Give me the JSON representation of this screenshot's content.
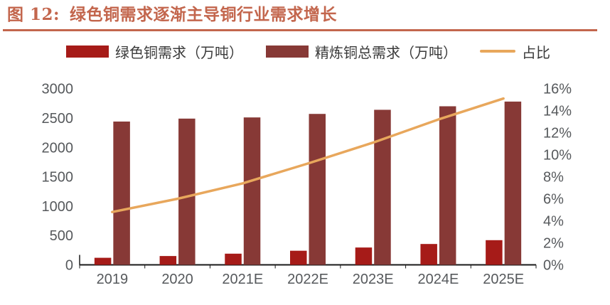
{
  "header": {
    "figure_label": "图 12:",
    "title": "绿色铜需求逐渐主导铜行业需求增长"
  },
  "colors": {
    "accent": "#C3664D",
    "bar_green_copper": "#A61B18",
    "bar_total_demand": "#873936",
    "ratio_line": "#E8A75C",
    "axis_text": "#56595C",
    "legend_text": "#3A3A3A",
    "axis_line": "#1a1a1a"
  },
  "chart_data": {
    "type": "bar",
    "title": "绿色铜需求逐渐主导铜行业需求增长",
    "categories": [
      "2019",
      "2020",
      "2021E",
      "2022E",
      "2023E",
      "2024E",
      "2025E"
    ],
    "series": [
      {
        "name": "绿色铜需求（万吨）",
        "type": "bar",
        "axis": "left",
        "color": "#A61B18",
        "values": [
          120,
          150,
          190,
          240,
          295,
          355,
          420
        ]
      },
      {
        "name": "精炼铜总需求（万吨）",
        "type": "bar",
        "axis": "left",
        "color": "#873936",
        "values": [
          2440,
          2490,
          2510,
          2570,
          2640,
          2700,
          2780
        ]
      },
      {
        "name": "占比",
        "type": "line",
        "axis": "right",
        "color": "#E8A75C",
        "values": [
          4.8,
          6.0,
          7.4,
          9.2,
          11.1,
          13.2,
          15.1
        ]
      }
    ],
    "left_axis": {
      "min": 0,
      "max": 3000,
      "ticks": [
        "0",
        "500",
        "1000",
        "1500",
        "2000",
        "2500",
        "3000"
      ]
    },
    "right_axis": {
      "min": 0,
      "max": 16,
      "ticks": [
        "0%",
        "2%",
        "4%",
        "6%",
        "8%",
        "10%",
        "12%",
        "14%",
        "16%"
      ]
    },
    "grid": false,
    "legend_position": "top"
  }
}
